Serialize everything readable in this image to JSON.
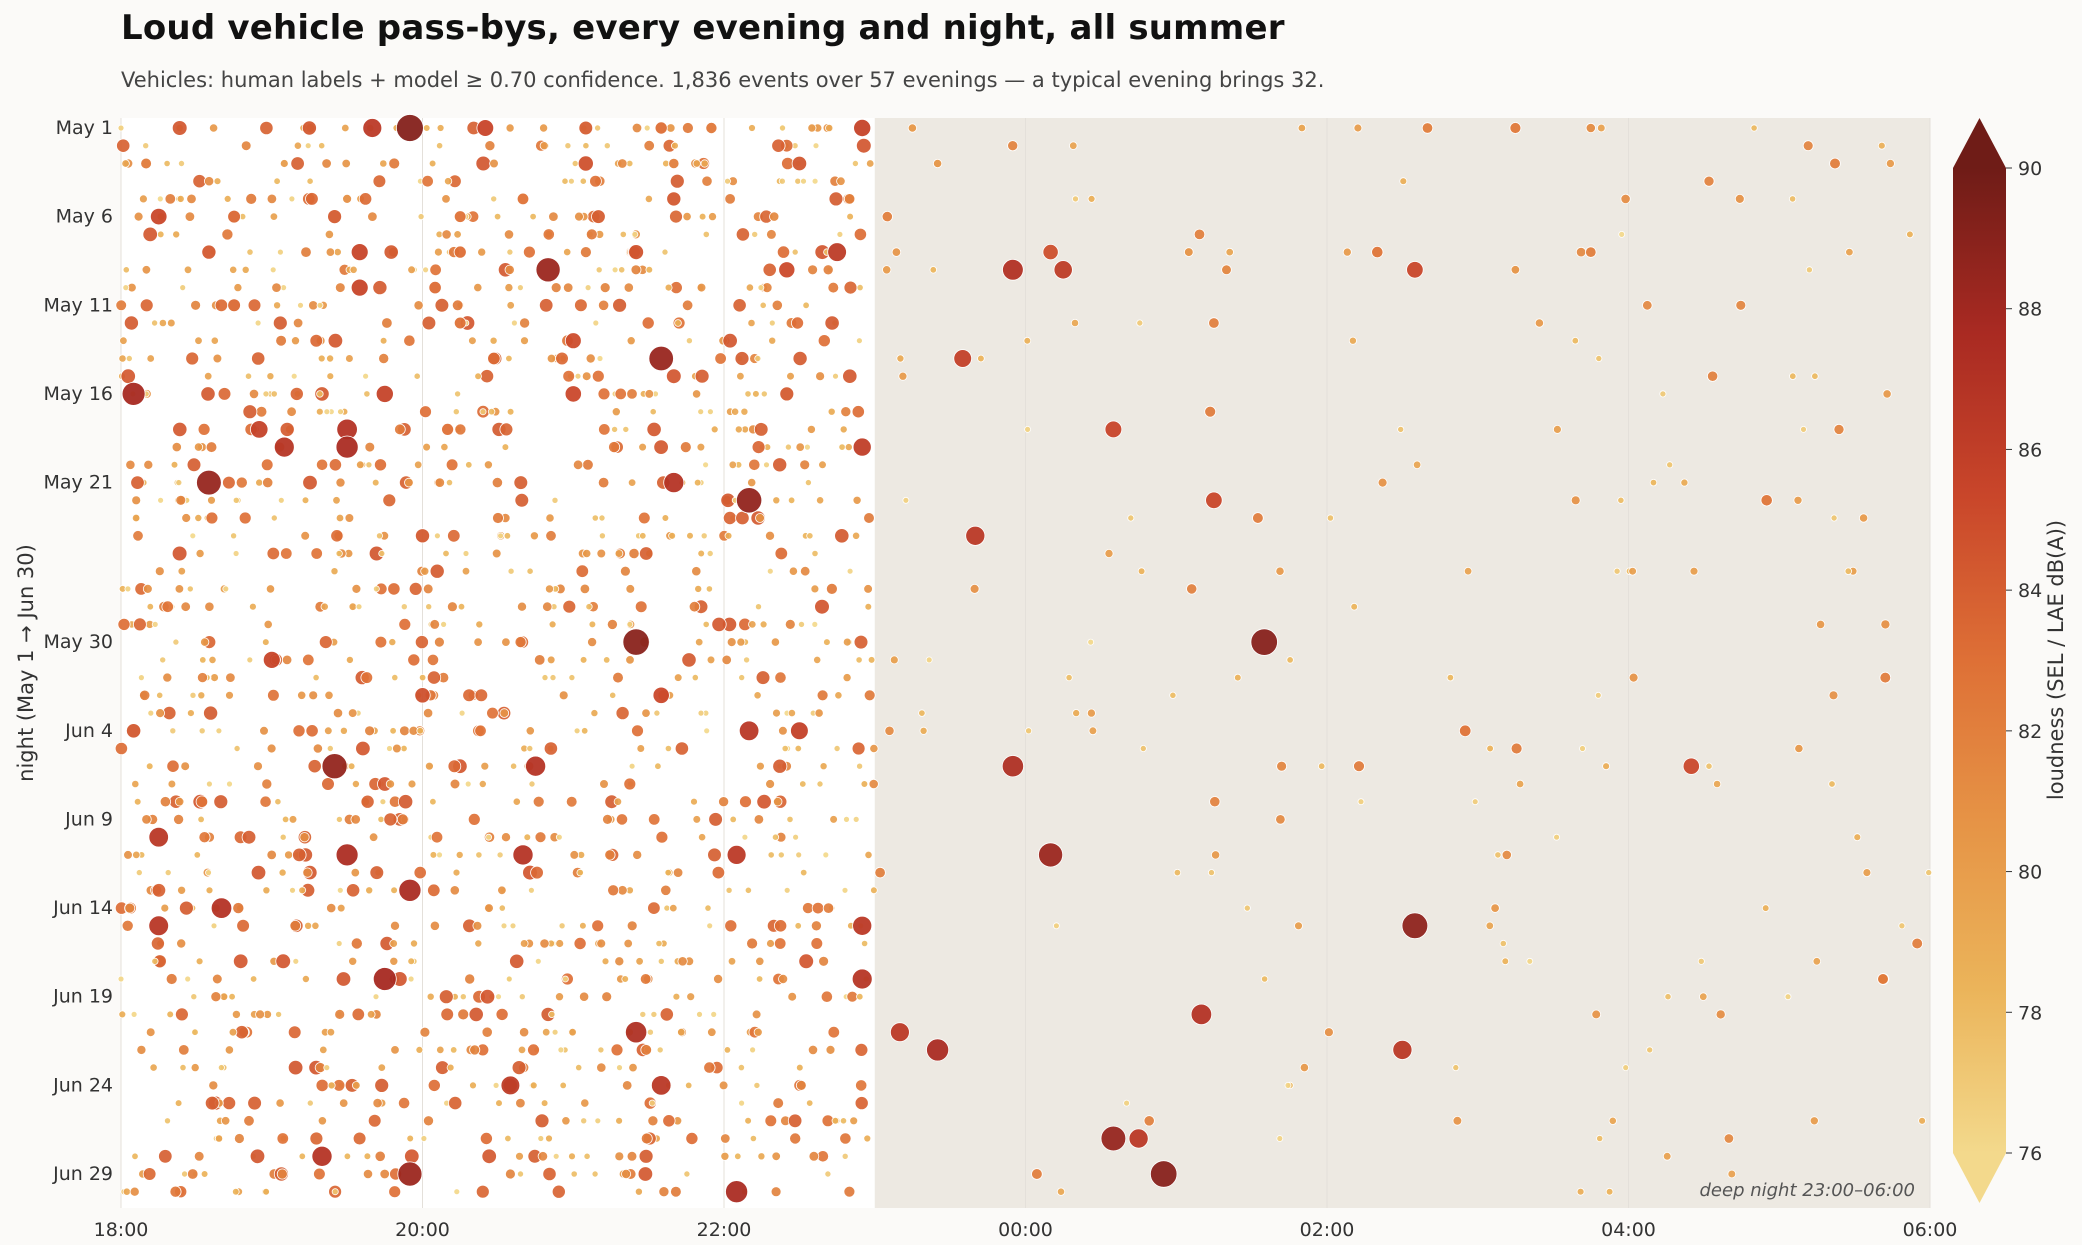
{
  "chart_data": {
    "type": "scatter",
    "title": "Loud vehicle pass-bys, every evening and night, all summer",
    "subtitle": "Vehicles: human labels + model ≥ 0.70 confidence.  1,836 events over 57 evenings — a typical evening brings 32.",
    "xlabel": "",
    "ylabel": "night (May 1 → Jun 30)",
    "x_ticks": [
      "18:00",
      "20:00",
      "22:00",
      "00:00",
      "02:00",
      "04:00",
      "06:00"
    ],
    "y_ticks": [
      "May 1",
      "May 6",
      "May 11",
      "May 16",
      "May 21",
      "May 30",
      "Jun 4",
      "Jun 9",
      "Jun 14",
      "Jun 19",
      "Jun 24",
      "Jun 29"
    ],
    "xlim_hours_after_18": [
      0,
      12
    ],
    "shaded_region": {
      "from": "23:00",
      "to": "06:00",
      "label": "deep night  23:00–06:00",
      "color": "#ede9e2"
    },
    "colorbar": {
      "label": "loudness  (SEL / LAE dB(A))",
      "range": [
        76,
        90
      ],
      "ticks": [
        "76",
        "78",
        "80",
        "82",
        "84",
        "86",
        "88",
        "90"
      ],
      "extend": "both",
      "colors": [
        "#f3d98c",
        "#ebb45a",
        "#e69446",
        "#de7036",
        "#c9462a",
        "#a92a22",
        "#6f1c17"
      ]
    },
    "encoding": "x = time of pass-by, y = evening, marker size and color = loudness in dB(A)",
    "series": [
      {
        "points": [
          {
            "x": "18:00",
            "y": "May 1",
            "v": 76.5
          },
          {
            "x": "19:15",
            "y": "May 1",
            "v": 84.2
          },
          {
            "x": "19:40",
            "y": "May 1",
            "v": 86.3
          },
          {
            "x": "19:55",
            "y": "May 1",
            "v": 89.1
          },
          {
            "x": "20:25",
            "y": "May 1",
            "v": 85.4
          },
          {
            "x": "21:05",
            "y": "May 1",
            "v": 84.0
          },
          {
            "x": "21:35",
            "y": "May 1",
            "v": 83.1
          },
          {
            "x": "21:55",
            "y": "May 1",
            "v": 82.5
          },
          {
            "x": "22:35",
            "y": "May 1",
            "v": 80.2
          },
          {
            "x": "22:55",
            "y": "May 1",
            "v": 85.6
          },
          {
            "x": "23:15",
            "y": "May 1",
            "v": 80.4
          },
          {
            "x": "01:50",
            "y": "May 1",
            "v": 79.5
          },
          {
            "x": "02:40",
            "y": "May 1",
            "v": 82.1
          },
          {
            "x": "03:15",
            "y": "May 1",
            "v": 82.4
          },
          {
            "x": "03:45",
            "y": "May 1",
            "v": 81.2
          },
          {
            "x": "04:50",
            "y": "May 1",
            "v": 78.0
          },
          {
            "x": "18:10",
            "y": "May 3",
            "v": 82.3
          },
          {
            "x": "19:05",
            "y": "May 3",
            "v": 80.1
          },
          {
            "x": "21:05",
            "y": "May 3",
            "v": 84.7
          },
          {
            "x": "21:40",
            "y": "May 3",
            "v": 82.0
          },
          {
            "x": "22:30",
            "y": "May 3",
            "v": 84.4
          },
          {
            "x": "23:25",
            "y": "May 3",
            "v": 80.5
          },
          {
            "x": "19:30",
            "y": "May 5",
            "v": 81.0
          },
          {
            "x": "20:40",
            "y": "May 5",
            "v": 82.8
          },
          {
            "x": "21:40",
            "y": "May 5",
            "v": 84.2
          },
          {
            "x": "22:50",
            "y": "May 5",
            "v": 82.1
          },
          {
            "x": "18:15",
            "y": "May 6",
            "v": 85.3
          },
          {
            "x": "18:45",
            "y": "May 6",
            "v": 83.5
          },
          {
            "x": "19:25",
            "y": "May 6",
            "v": 84.1
          },
          {
            "x": "20:15",
            "y": "May 6",
            "v": 82.9
          },
          {
            "x": "21:10",
            "y": "May 6",
            "v": 84.0
          },
          {
            "x": "22:20",
            "y": "May 6",
            "v": 81.3
          },
          {
            "x": "23:05",
            "y": "May 6",
            "v": 82.0
          },
          {
            "x": "18:35",
            "y": "May 8",
            "v": 84.2
          },
          {
            "x": "19:35",
            "y": "May 8",
            "v": 85.5
          },
          {
            "x": "20:15",
            "y": "May 8",
            "v": 83.1
          },
          {
            "x": "21:25",
            "y": "May 8",
            "v": 84.6
          },
          {
            "x": "22:45",
            "y": "May 8",
            "v": 86.2
          },
          {
            "x": "00:10",
            "y": "May 8",
            "v": 84.8
          },
          {
            "x": "01:05",
            "y": "May 8",
            "v": 80.7
          },
          {
            "x": "02:20",
            "y": "May 8",
            "v": 82.7
          },
          {
            "x": "03:45",
            "y": "May 8",
            "v": 82.1
          },
          {
            "x": "20:50",
            "y": "May 9",
            "v": 88.2
          },
          {
            "x": "22:25",
            "y": "May 9",
            "v": 85.1
          },
          {
            "x": "23:55",
            "y": "May 9",
            "v": 87.0
          },
          {
            "x": "00:15",
            "y": "May 9",
            "v": 86.1
          },
          {
            "x": "01:20",
            "y": "May 9",
            "v": 81.5
          },
          {
            "x": "02:35",
            "y": "May 9",
            "v": 85.3
          },
          {
            "x": "03:15",
            "y": "May 9",
            "v": 80.6
          },
          {
            "x": "19:35",
            "y": "May 10",
            "v": 85.5
          },
          {
            "x": "20:05",
            "y": "May 10",
            "v": 83.2
          },
          {
            "x": "18:45",
            "y": "May 11",
            "v": 83.4
          },
          {
            "x": "20:15",
            "y": "May 12",
            "v": 82.9
          },
          {
            "x": "21:00",
            "y": "May 13",
            "v": 85.0
          },
          {
            "x": "21:35",
            "y": "May 14",
            "v": 88.3
          },
          {
            "x": "23:35",
            "y": "May 14",
            "v": 85.8
          },
          {
            "x": "18:05",
            "y": "May 16",
            "v": 87.8
          },
          {
            "x": "19:45",
            "y": "May 16",
            "v": 85.6
          },
          {
            "x": "21:00",
            "y": "May 16",
            "v": 85.2
          },
          {
            "x": "22:25",
            "y": "May 16",
            "v": 84.1
          },
          {
            "x": "18:55",
            "y": "May 18",
            "v": 85.7
          },
          {
            "x": "19:30",
            "y": "May 18",
            "v": 86.9
          },
          {
            "x": "20:10",
            "y": "May 18",
            "v": 83.0
          },
          {
            "x": "00:35",
            "y": "May 18",
            "v": 85.4
          },
          {
            "x": "19:05",
            "y": "May 19",
            "v": 86.7
          },
          {
            "x": "19:30",
            "y": "May 19",
            "v": 87.5
          },
          {
            "x": "22:55",
            "y": "May 19",
            "v": 86.0
          },
          {
            "x": "18:35",
            "y": "May 21",
            "v": 88.4
          },
          {
            "x": "21:40",
            "y": "May 21",
            "v": 86.8
          },
          {
            "x": "22:10",
            "y": "May 22",
            "v": 88.6
          },
          {
            "x": "01:15",
            "y": "May 22",
            "v": 85.3
          },
          {
            "x": "04:55",
            "y": "May 22",
            "v": 82.6
          },
          {
            "x": "20:00",
            "y": "May 24",
            "v": 84.2
          },
          {
            "x": "23:40",
            "y": "May 24",
            "v": 86.4
          },
          {
            "x": "21:25",
            "y": "May 30",
            "v": 88.9
          },
          {
            "x": "01:35",
            "y": "May 30",
            "v": 89.0
          },
          {
            "x": "19:00",
            "y": "May 31",
            "v": 85.5
          },
          {
            "x": "20:00",
            "y": "Jun 2",
            "v": 84.8
          },
          {
            "x": "21:35",
            "y": "Jun 2",
            "v": 85.2
          },
          {
            "x": "18:05",
            "y": "Jun 4",
            "v": 84.3
          },
          {
            "x": "22:10",
            "y": "Jun 4",
            "v": 86.5
          },
          {
            "x": "22:30",
            "y": "Jun 4",
            "v": 85.8
          },
          {
            "x": "02:55",
            "y": "Jun 4",
            "v": 82.8
          },
          {
            "x": "19:25",
            "y": "Jun 6",
            "v": 88.5
          },
          {
            "x": "20:45",
            "y": "Jun 6",
            "v": 86.8
          },
          {
            "x": "23:55",
            "y": "Jun 6",
            "v": 87.2
          },
          {
            "x": "04:25",
            "y": "Jun 6",
            "v": 85.2
          },
          {
            "x": "18:15",
            "y": "Jun 10",
            "v": 86.5
          },
          {
            "x": "19:30",
            "y": "Jun 11",
            "v": 87.4
          },
          {
            "x": "20:40",
            "y": "Jun 11",
            "v": 86.8
          },
          {
            "x": "22:05",
            "y": "Jun 11",
            "v": 86.3
          },
          {
            "x": "00:10",
            "y": "Jun 11",
            "v": 88.2
          },
          {
            "x": "19:55",
            "y": "Jun 13",
            "v": 87.5
          },
          {
            "x": "18:40",
            "y": "Jun 14",
            "v": 86.9
          },
          {
            "x": "18:15",
            "y": "Jun 15",
            "v": 86.6
          },
          {
            "x": "22:55",
            "y": "Jun 15",
            "v": 86.4
          },
          {
            "x": "02:35",
            "y": "Jun 15",
            "v": 88.7
          },
          {
            "x": "19:45",
            "y": "Jun 18",
            "v": 87.8
          },
          {
            "x": "22:55",
            "y": "Jun 18",
            "v": 86.7
          },
          {
            "x": "01:10",
            "y": "Jun 20",
            "v": 86.9
          },
          {
            "x": "21:25",
            "y": "Jun 21",
            "v": 87.2
          },
          {
            "x": "23:10",
            "y": "Jun 21",
            "v": 86.3
          },
          {
            "x": "23:25",
            "y": "Jun 22",
            "v": 87.5
          },
          {
            "x": "02:30",
            "y": "Jun 22",
            "v": 86.4
          },
          {
            "x": "20:35",
            "y": "Jun 24",
            "v": 86.2
          },
          {
            "x": "21:35",
            "y": "Jun 24",
            "v": 86.5
          },
          {
            "x": "00:45",
            "y": "Jun 27",
            "v": 86.4
          },
          {
            "x": "00:35",
            "y": "Jun 27",
            "v": 88.4
          },
          {
            "x": "19:20",
            "y": "Jun 28",
            "v": 86.8
          },
          {
            "x": "19:55",
            "y": "Jun 29",
            "v": 88.2
          },
          {
            "x": "00:55",
            "y": "Jun 29",
            "v": 89.0
          },
          {
            "x": "22:05",
            "y": "Jun 30",
            "v": 87.5
          }
        ]
      }
    ]
  }
}
